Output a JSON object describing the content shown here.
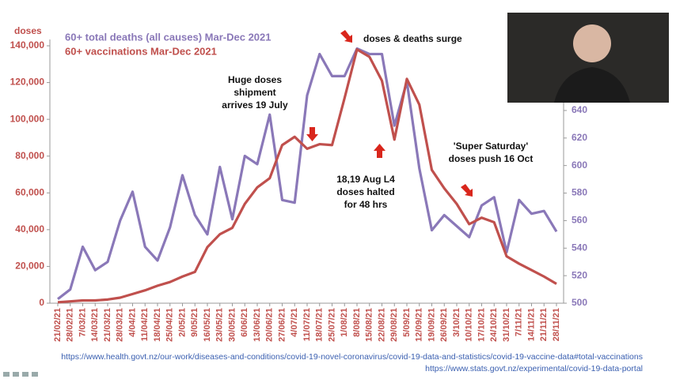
{
  "chart_data": {
    "type": "line",
    "y_label": "doses",
    "categories": [
      "21/02/21",
      "28/02/21",
      "7/03/21",
      "14/03/21",
      "21/03/21",
      "28/03/21",
      "4/04/21",
      "11/04/21",
      "18/04/21",
      "25/04/21",
      "2/05/21",
      "9/05/21",
      "16/05/21",
      "23/05/21",
      "30/05/21",
      "6/06/21",
      "13/06/21",
      "20/06/21",
      "27/06/21",
      "4/07/21",
      "11/07/21",
      "18/07/21",
      "25/07/21",
      "1/08/21",
      "8/08/21",
      "15/08/21",
      "22/08/21",
      "29/08/21",
      "5/09/21",
      "12/09/21",
      "19/09/21",
      "26/09/21",
      "3/10/21",
      "10/10/21",
      "17/10/21",
      "24/10/21",
      "31/10/21",
      "7/11/21",
      "14/11/21",
      "21/11/21",
      "28/11/21"
    ],
    "series": [
      {
        "name": "60+ total deaths (all causes) Mar-Dec 2021",
        "color": "#8a78b8",
        "axis": "y2",
        "values": [
          503,
          510,
          541,
          524,
          530,
          560,
          581,
          541,
          531,
          555,
          593,
          564,
          550,
          599,
          561,
          607,
          601,
          637,
          575,
          573,
          651,
          681,
          665,
          665,
          685,
          681,
          681,
          629,
          661,
          598,
          553,
          564,
          556,
          548,
          571,
          577,
          537,
          575,
          565,
          567,
          552
        ]
      },
      {
        "name": "60+ vaccinations Mar-Dec 2021",
        "color": "#c0504d",
        "values": [
          500,
          1000,
          1500,
          1500,
          2000,
          3000,
          5000,
          7000,
          9500,
          11500,
          14500,
          17000,
          30500,
          37500,
          41000,
          54000,
          63000,
          68000,
          86000,
          90500,
          84000,
          86500,
          86000,
          111500,
          138000,
          134000,
          121000,
          89000,
          122000,
          108000,
          72500,
          62500,
          54000,
          43000,
          46500,
          44000,
          25500,
          21500,
          18000,
          14500,
          10500
        ]
      }
    ],
    "ylim": [
      0,
      140000
    ],
    "yticks": [
      {
        "value": 0,
        "label": "0"
      },
      {
        "value": 20000,
        "label": "20,000"
      },
      {
        "value": 40000,
        "label": "40,000"
      },
      {
        "value": 60000,
        "label": "60,000"
      },
      {
        "value": 80000,
        "label": "80,000"
      },
      {
        "value": 100000,
        "label": "100,000"
      },
      {
        "value": 120000,
        "label": "120,000"
      },
      {
        "value": 140000,
        "label": "140,000"
      }
    ],
    "y2lim": [
      500,
      687
    ],
    "y2ticks": [
      500,
      520,
      540,
      560,
      580,
      600,
      620,
      640
    ],
    "annotations": [
      {
        "lines": [
          "doses & deaths surge"
        ]
      },
      {
        "lines": [
          "Huge doses",
          "shipment",
          "arrives 19 July"
        ]
      },
      {
        "lines": [
          "18,19 Aug L4",
          "doses halted",
          "for 48 hrs"
        ]
      },
      {
        "lines": [
          "'Super Saturday'",
          "doses push 16 Oct"
        ]
      }
    ],
    "sources": [
      "https://www.health.govt.nz/our-work/diseases-and-conditions/covid-19-novel-coronavirus/covid-19-data-and-statistics/covid-19-vaccine-data#total-vaccinations",
      "https://www.stats.govt.nz/experimental/covid-19-data-portal"
    ]
  }
}
